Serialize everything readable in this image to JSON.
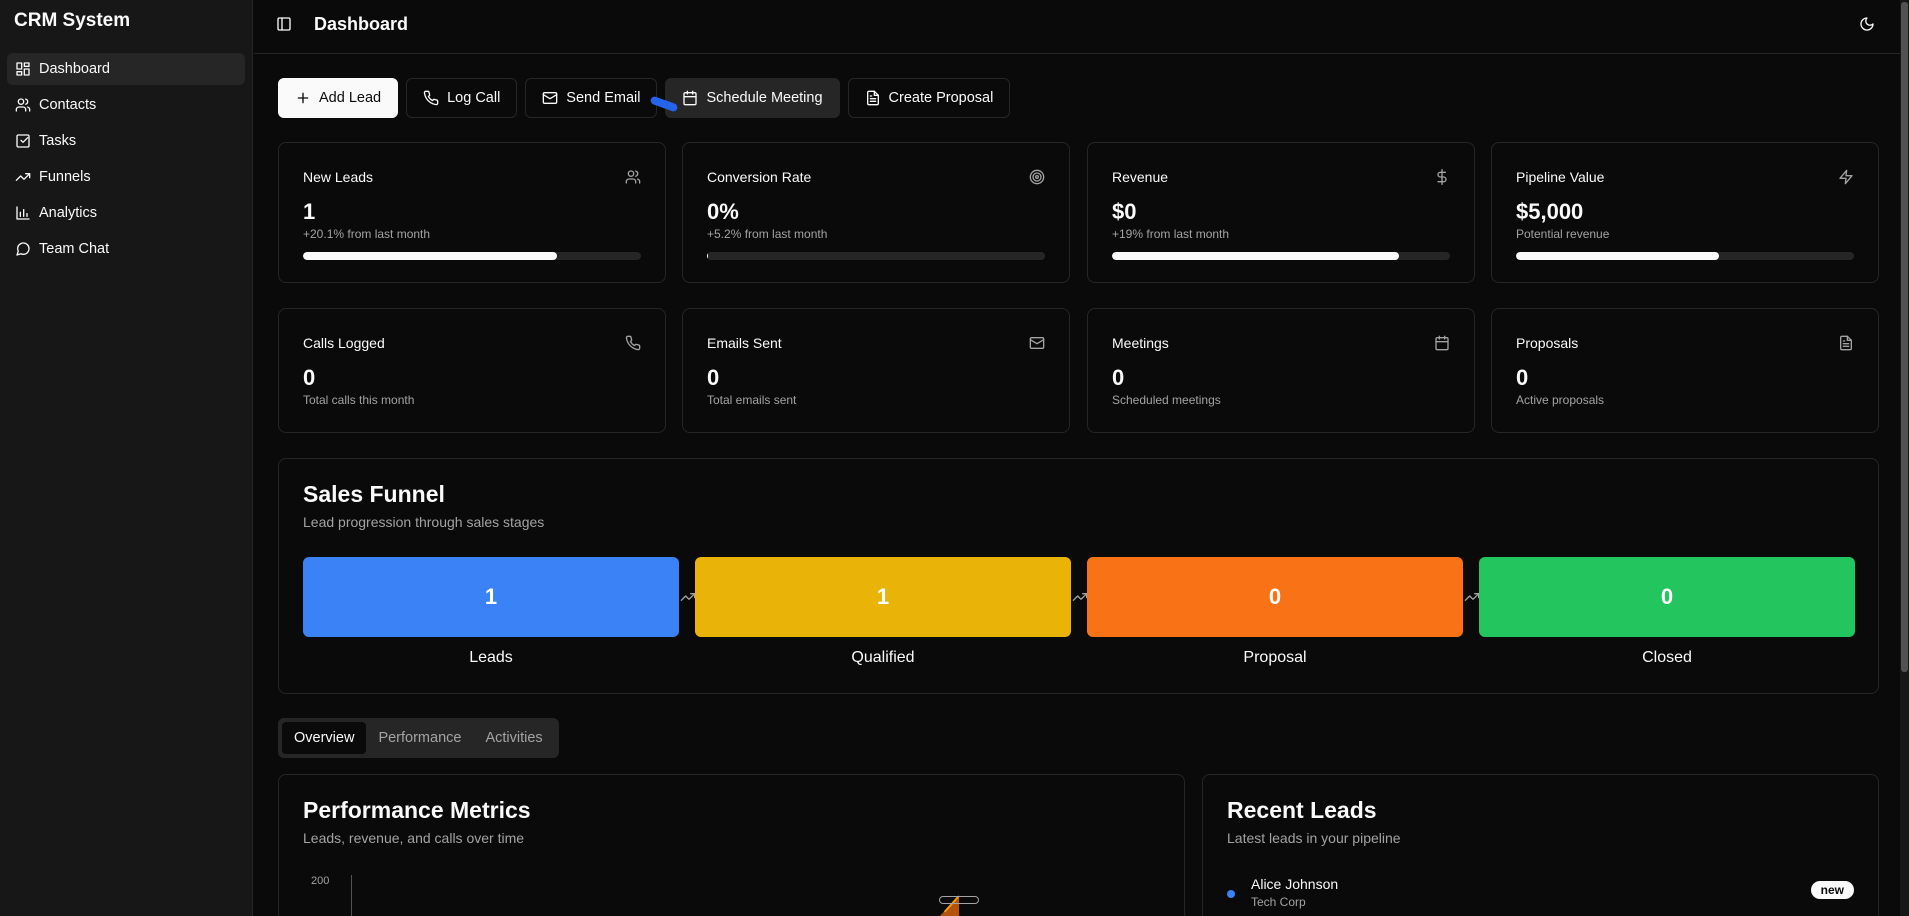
{
  "sidebar": {
    "brand": "CRM System",
    "items": [
      {
        "label": "Dashboard",
        "icon": "layout-dashboard-icon",
        "active": true
      },
      {
        "label": "Contacts",
        "icon": "users-icon"
      },
      {
        "label": "Tasks",
        "icon": "check-square-icon"
      },
      {
        "label": "Funnels",
        "icon": "trending-up-icon"
      },
      {
        "label": "Analytics",
        "icon": "bar-chart-icon"
      },
      {
        "label": "Team Chat",
        "icon": "message-circle-icon"
      }
    ]
  },
  "header": {
    "title": "Dashboard",
    "sidebar_toggle_icon": "panel-left-icon",
    "theme_icon": "moon-icon"
  },
  "actions": {
    "add_lead": "Add Lead",
    "log_call": "Log Call",
    "send_email": "Send Email",
    "schedule_meeting": "Schedule Meeting",
    "create_proposal": "Create Proposal"
  },
  "stats": [
    {
      "title": "New Leads",
      "value": "1",
      "sub": "+20.1% from last month",
      "icon": "users-icon",
      "progress": 0.75
    },
    {
      "title": "Conversion Rate",
      "value": "0%",
      "sub": "+5.2% from last month",
      "icon": "target-icon",
      "progress": 0.0
    },
    {
      "title": "Revenue",
      "value": "$0",
      "sub": "+19% from last month",
      "icon": "dollar-icon",
      "progress": 0.85
    },
    {
      "title": "Pipeline Value",
      "value": "$5,000",
      "sub": "Potential revenue",
      "icon": "zap-icon",
      "progress": 0.6
    },
    {
      "title": "Calls Logged",
      "value": "0",
      "sub": "Total calls this month",
      "icon": "phone-icon"
    },
    {
      "title": "Emails Sent",
      "value": "0",
      "sub": "Total emails sent",
      "icon": "mail-icon"
    },
    {
      "title": "Meetings",
      "value": "0",
      "sub": "Scheduled meetings",
      "icon": "calendar-icon"
    },
    {
      "title": "Proposals",
      "value": "0",
      "sub": "Active proposals",
      "icon": "file-text-icon"
    }
  ],
  "funnel": {
    "title": "Sales Funnel",
    "subtitle": "Lead progression through sales stages",
    "stages": [
      {
        "label": "Leads",
        "value": "1",
        "color": "#3b82f6"
      },
      {
        "label": "Qualified",
        "value": "1",
        "color": "#eab308"
      },
      {
        "label": "Proposal",
        "value": "0",
        "color": "#f97316"
      },
      {
        "label": "Closed",
        "value": "0",
        "color": "#22c55e"
      }
    ]
  },
  "tabs": [
    "Overview",
    "Performance",
    "Activities"
  ],
  "performance": {
    "title": "Performance Metrics",
    "subtitle": "Leads, revenue, and calls over time",
    "y_tick": "200"
  },
  "recent_leads": {
    "title": "Recent Leads",
    "subtitle": "Latest leads in your pipeline",
    "items": [
      {
        "name": "Alice Johnson",
        "company": "Tech Corp",
        "status": "new"
      }
    ]
  }
}
